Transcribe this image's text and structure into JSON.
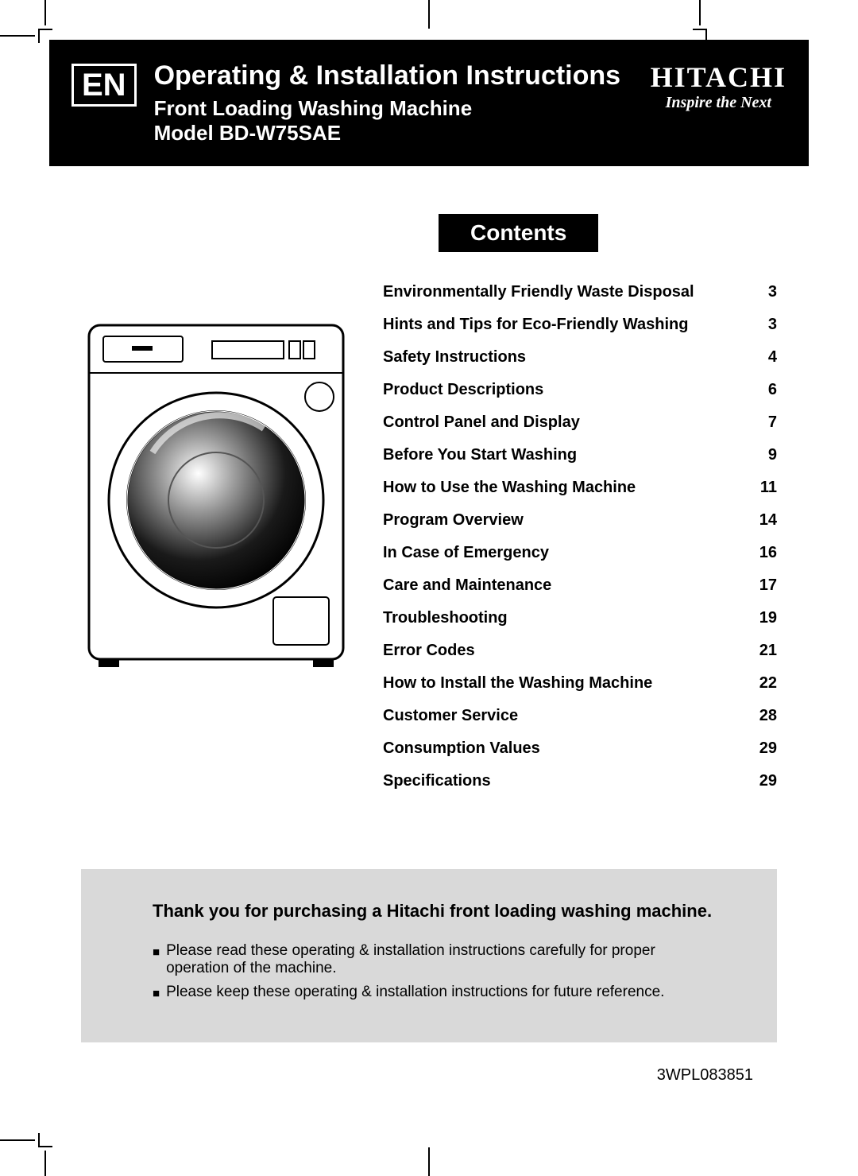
{
  "header": {
    "lang_badge": "EN",
    "title_main": "Operating & Installation Instructions",
    "title_sub1": "Front Loading Washing Machine",
    "title_sub2": "Model BD-W75SAE",
    "brand_name": "HITACHI",
    "brand_tagline": "Inspire the Next"
  },
  "contents_heading": "Contents",
  "toc": [
    {
      "label": "Environmentally Friendly Waste Disposal",
      "page": "3"
    },
    {
      "label": "Hints and Tips for Eco-Friendly Washing",
      "page": "3"
    },
    {
      "label": "Safety Instructions",
      "page": "4"
    },
    {
      "label": "Product Descriptions",
      "page": "6"
    },
    {
      "label": "Control Panel and Display",
      "page": "7"
    },
    {
      "label": "Before You Start Washing",
      "page": "9"
    },
    {
      "label": "How to Use the Washing Machine",
      "page": "11"
    },
    {
      "label": "Program Overview",
      "page": "14"
    },
    {
      "label": "In Case of Emergency",
      "page": "16"
    },
    {
      "label": "Care and Maintenance",
      "page": "17"
    },
    {
      "label": "Troubleshooting",
      "page": "19"
    },
    {
      "label": "Error Codes",
      "page": "21"
    },
    {
      "label": "How to Install the Washing Machine",
      "page": "22"
    },
    {
      "label": "Customer Service",
      "page": "28"
    },
    {
      "label": "Consumption Values",
      "page": "29"
    },
    {
      "label": "Specifications",
      "page": "29"
    }
  ],
  "notice": {
    "title": "Thank you for purchasing a Hitachi front loading washing machine.",
    "items": [
      "Please read these operating & installation instructions carefully for proper operation of the machine.",
      "Please keep these operating & installation instructions for future reference."
    ]
  },
  "doc_code": "3WPL083851",
  "colors": {
    "black": "#000000",
    "white": "#ffffff",
    "notice_bg": "#d9d9d9"
  }
}
